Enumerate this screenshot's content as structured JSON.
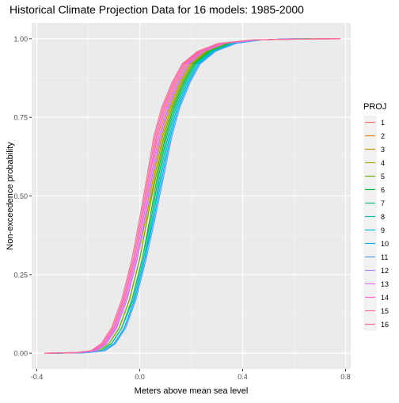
{
  "chart_data": {
    "type": "line",
    "title": "Historical Climate Projection Data for 16 models: 1985-2000",
    "xlabel": "Meters above mean sea level",
    "ylabel": "Non-exceedence probability",
    "xlim": [
      -0.4,
      0.8
    ],
    "ylim": [
      0,
      1
    ],
    "x_ticks": [
      -0.4,
      0.0,
      0.4,
      0.8
    ],
    "x_tick_labels": [
      "-0.4",
      "0.0",
      "0.4",
      "0.8"
    ],
    "y_ticks": [
      0,
      0.25,
      0.5,
      0.75,
      1.0
    ],
    "y_tick_labels": [
      "0.00",
      "0.25",
      "0.50",
      "0.75",
      "1.00"
    ],
    "grid": true,
    "legend": {
      "title": "PROJ",
      "position": "right",
      "entries": [
        "1",
        "2",
        "3",
        "4",
        "5",
        "6",
        "7",
        "8",
        "9",
        "10",
        "11",
        "12",
        "13",
        "14",
        "15",
        "16"
      ]
    },
    "series_colors": [
      "#F8766D",
      "#E58700",
      "#C99800",
      "#A3A500",
      "#6BB100",
      "#00BA38",
      "#00BF7D",
      "#00C0AF",
      "#00BCD8",
      "#00B0F6",
      "#619CFF",
      "#B983FF",
      "#E76BF3",
      "#FD61D1",
      "#FF67A4",
      "#FF6C91"
    ],
    "series": [
      {
        "name": "1",
        "x": [
          -0.36,
          -0.24,
          -0.18,
          -0.14,
          -0.1,
          -0.06,
          -0.02,
          0.01,
          0.04,
          0.07,
          0.1,
          0.14,
          0.18,
          0.24,
          0.32,
          0.45,
          0.62,
          0.78
        ],
        "y": [
          0.0,
          0.002,
          0.008,
          0.03,
          0.08,
          0.17,
          0.3,
          0.43,
          0.57,
          0.69,
          0.78,
          0.86,
          0.92,
          0.96,
          0.985,
          0.996,
          0.999,
          1.0
        ]
      },
      {
        "name": "2",
        "x": [
          -0.36,
          -0.23,
          -0.17,
          -0.13,
          -0.09,
          -0.05,
          -0.01,
          0.02,
          0.05,
          0.08,
          0.11,
          0.15,
          0.19,
          0.25,
          0.33,
          0.45,
          0.62,
          0.78
        ],
        "y": [
          0.0,
          0.002,
          0.008,
          0.03,
          0.08,
          0.17,
          0.3,
          0.43,
          0.57,
          0.69,
          0.78,
          0.86,
          0.92,
          0.96,
          0.985,
          0.996,
          0.999,
          1.0
        ]
      },
      {
        "name": "3",
        "x": [
          -0.35,
          -0.23,
          -0.17,
          -0.13,
          -0.09,
          -0.05,
          -0.01,
          0.025,
          0.055,
          0.085,
          0.115,
          0.155,
          0.195,
          0.255,
          0.335,
          0.46,
          0.63,
          0.7
        ],
        "y": [
          0.0,
          0.002,
          0.008,
          0.03,
          0.08,
          0.17,
          0.3,
          0.43,
          0.57,
          0.69,
          0.78,
          0.86,
          0.92,
          0.96,
          0.985,
          0.996,
          0.999,
          1.0
        ]
      },
      {
        "name": "4",
        "x": [
          -0.35,
          -0.22,
          -0.16,
          -0.12,
          -0.08,
          -0.04,
          0.0,
          0.03,
          0.06,
          0.09,
          0.12,
          0.16,
          0.2,
          0.26,
          0.34,
          0.46,
          0.6,
          0.72
        ],
        "y": [
          0.0,
          0.002,
          0.008,
          0.03,
          0.08,
          0.17,
          0.3,
          0.43,
          0.57,
          0.69,
          0.78,
          0.86,
          0.92,
          0.96,
          0.985,
          0.996,
          0.999,
          1.0
        ]
      },
      {
        "name": "5",
        "x": [
          -0.34,
          -0.22,
          -0.16,
          -0.12,
          -0.08,
          -0.04,
          0.0,
          0.03,
          0.065,
          0.095,
          0.125,
          0.165,
          0.205,
          0.265,
          0.345,
          0.47,
          0.58,
          0.66
        ],
        "y": [
          0.0,
          0.002,
          0.008,
          0.03,
          0.08,
          0.17,
          0.3,
          0.43,
          0.57,
          0.69,
          0.78,
          0.86,
          0.92,
          0.96,
          0.985,
          0.996,
          0.999,
          1.0
        ]
      },
      {
        "name": "6",
        "x": [
          -0.34,
          -0.21,
          -0.15,
          -0.11,
          -0.07,
          -0.03,
          0.01,
          0.04,
          0.07,
          0.1,
          0.13,
          0.17,
          0.21,
          0.27,
          0.35,
          0.47,
          0.58,
          0.68
        ],
        "y": [
          0.0,
          0.002,
          0.008,
          0.03,
          0.08,
          0.17,
          0.3,
          0.43,
          0.57,
          0.69,
          0.78,
          0.86,
          0.92,
          0.96,
          0.985,
          0.996,
          0.999,
          1.0
        ]
      },
      {
        "name": "7",
        "x": [
          -0.34,
          -0.21,
          -0.15,
          -0.11,
          -0.07,
          -0.03,
          0.01,
          0.045,
          0.075,
          0.105,
          0.135,
          0.175,
          0.215,
          0.275,
          0.355,
          0.47,
          0.58,
          0.66
        ],
        "y": [
          0.0,
          0.002,
          0.008,
          0.03,
          0.08,
          0.17,
          0.3,
          0.43,
          0.57,
          0.69,
          0.78,
          0.86,
          0.92,
          0.96,
          0.985,
          0.996,
          0.999,
          1.0
        ]
      },
      {
        "name": "8",
        "x": [
          -0.33,
          -0.21,
          -0.15,
          -0.11,
          -0.07,
          -0.025,
          0.015,
          0.05,
          0.08,
          0.11,
          0.14,
          0.18,
          0.22,
          0.28,
          0.36,
          0.47,
          0.57,
          0.64
        ],
        "y": [
          0.0,
          0.002,
          0.008,
          0.03,
          0.08,
          0.17,
          0.3,
          0.43,
          0.57,
          0.69,
          0.78,
          0.86,
          0.92,
          0.96,
          0.985,
          0.996,
          0.999,
          1.0
        ]
      },
      {
        "name": "9",
        "x": [
          -0.33,
          -0.2,
          -0.14,
          -0.1,
          -0.06,
          -0.02,
          0.02,
          0.05,
          0.085,
          0.115,
          0.145,
          0.185,
          0.225,
          0.285,
          0.365,
          0.47,
          0.56,
          0.62
        ],
        "y": [
          0.0,
          0.002,
          0.008,
          0.03,
          0.08,
          0.17,
          0.3,
          0.43,
          0.57,
          0.69,
          0.78,
          0.86,
          0.92,
          0.96,
          0.985,
          0.996,
          0.999,
          1.0
        ]
      },
      {
        "name": "10",
        "x": [
          -0.33,
          -0.2,
          -0.14,
          -0.1,
          -0.06,
          -0.02,
          0.02,
          0.055,
          0.09,
          0.12,
          0.15,
          0.19,
          0.23,
          0.29,
          0.37,
          0.47,
          0.55,
          0.61
        ],
        "y": [
          0.0,
          0.002,
          0.008,
          0.03,
          0.08,
          0.17,
          0.3,
          0.43,
          0.57,
          0.69,
          0.78,
          0.86,
          0.92,
          0.96,
          0.985,
          0.996,
          0.999,
          1.0
        ]
      },
      {
        "name": "11",
        "x": [
          -0.32,
          -0.2,
          -0.135,
          -0.095,
          -0.055,
          -0.015,
          0.025,
          0.06,
          0.095,
          0.125,
          0.155,
          0.195,
          0.235,
          0.295,
          0.375,
          0.47,
          0.55,
          0.6
        ],
        "y": [
          0.0,
          0.002,
          0.008,
          0.03,
          0.08,
          0.17,
          0.3,
          0.43,
          0.57,
          0.69,
          0.78,
          0.86,
          0.92,
          0.96,
          0.985,
          0.996,
          0.999,
          1.0
        ]
      },
      {
        "name": "12",
        "x": [
          -0.35,
          -0.23,
          -0.17,
          -0.13,
          -0.09,
          -0.05,
          -0.01,
          0.02,
          0.05,
          0.08,
          0.11,
          0.15,
          0.19,
          0.25,
          0.33,
          0.45,
          0.6,
          0.74
        ],
        "y": [
          0.0,
          0.002,
          0.008,
          0.03,
          0.08,
          0.17,
          0.3,
          0.43,
          0.57,
          0.69,
          0.78,
          0.86,
          0.92,
          0.96,
          0.985,
          0.996,
          0.999,
          1.0
        ]
      },
      {
        "name": "13",
        "x": [
          -0.36,
          -0.24,
          -0.175,
          -0.135,
          -0.095,
          -0.055,
          -0.015,
          0.015,
          0.045,
          0.075,
          0.105,
          0.145,
          0.185,
          0.245,
          0.325,
          0.45,
          0.61,
          0.76
        ],
        "y": [
          0.0,
          0.002,
          0.008,
          0.03,
          0.08,
          0.17,
          0.3,
          0.43,
          0.57,
          0.69,
          0.78,
          0.86,
          0.92,
          0.96,
          0.985,
          0.996,
          0.999,
          1.0
        ]
      },
      {
        "name": "14",
        "x": [
          -0.36,
          -0.24,
          -0.18,
          -0.14,
          -0.1,
          -0.06,
          -0.02,
          0.01,
          0.04,
          0.065,
          0.095,
          0.135,
          0.175,
          0.235,
          0.315,
          0.44,
          0.62,
          0.77
        ],
        "y": [
          0.0,
          0.002,
          0.008,
          0.03,
          0.08,
          0.17,
          0.3,
          0.43,
          0.57,
          0.69,
          0.78,
          0.86,
          0.92,
          0.96,
          0.985,
          0.996,
          0.999,
          1.0
        ]
      },
      {
        "name": "15",
        "x": [
          -0.37,
          -0.25,
          -0.185,
          -0.145,
          -0.105,
          -0.065,
          -0.025,
          0.005,
          0.035,
          0.06,
          0.09,
          0.13,
          0.17,
          0.23,
          0.31,
          0.44,
          0.63,
          0.78
        ],
        "y": [
          0.0,
          0.002,
          0.008,
          0.03,
          0.08,
          0.17,
          0.3,
          0.43,
          0.57,
          0.69,
          0.78,
          0.86,
          0.92,
          0.96,
          0.985,
          0.996,
          0.999,
          1.0
        ]
      },
      {
        "name": "16",
        "x": [
          -0.37,
          -0.25,
          -0.19,
          -0.15,
          -0.11,
          -0.07,
          -0.03,
          0.0,
          0.03,
          0.055,
          0.085,
          0.125,
          0.165,
          0.225,
          0.305,
          0.44,
          0.63,
          0.78
        ],
        "y": [
          0.0,
          0.002,
          0.008,
          0.03,
          0.08,
          0.17,
          0.3,
          0.43,
          0.57,
          0.69,
          0.78,
          0.86,
          0.92,
          0.96,
          0.985,
          0.996,
          0.999,
          1.0
        ]
      }
    ]
  }
}
